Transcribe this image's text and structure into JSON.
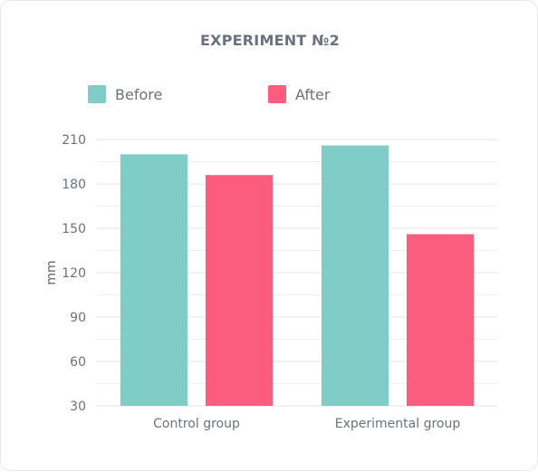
{
  "chart_data": {
    "type": "bar",
    "title": "EXPERIMENT №2",
    "categories": [
      "Control group",
      "Experimental group"
    ],
    "series": [
      {
        "name": "Before",
        "color": "#7fcdc6",
        "values": [
          200,
          206
        ]
      },
      {
        "name": "After",
        "color": "#fc5c7d",
        "values": [
          186,
          146
        ]
      }
    ],
    "xlabel": "",
    "ylabel": "mm",
    "ylim": [
      30,
      210
    ],
    "yticks": [
      30,
      60,
      90,
      120,
      150,
      180,
      210
    ],
    "grid": true,
    "legend_position": "top-left"
  }
}
